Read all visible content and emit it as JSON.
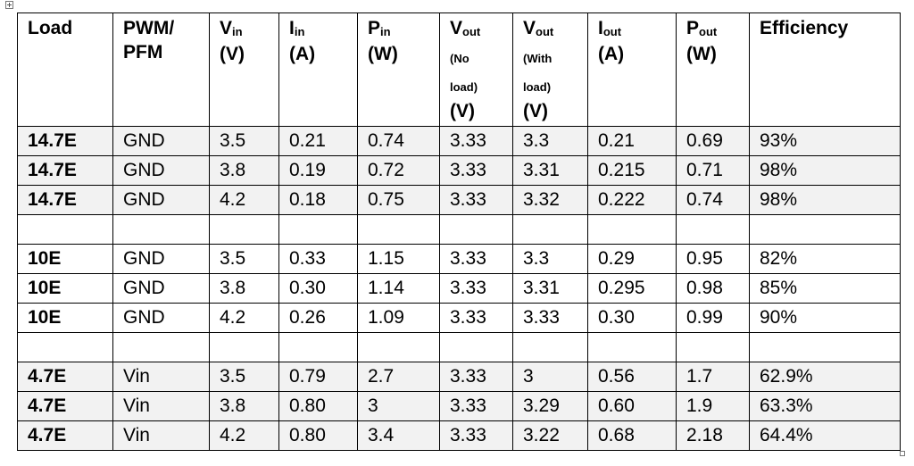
{
  "headers": [
    {
      "main": "Load",
      "sub": "",
      "unit": "",
      "note1": "",
      "note2": ""
    },
    {
      "main": "PWM/",
      "sub": "",
      "unit": "PFM",
      "note1": "",
      "note2": ""
    },
    {
      "main": "V",
      "sub": "in",
      "unit": "(V)",
      "note1": "",
      "note2": ""
    },
    {
      "main": "I",
      "sub": "in",
      "unit": "(A)",
      "note1": "",
      "note2": ""
    },
    {
      "main": "P",
      "sub": "in",
      "unit": "(W)",
      "note1": "",
      "note2": ""
    },
    {
      "main": "V",
      "sub": "out",
      "unit": "(V)",
      "note1": "(No",
      "note2": "load)"
    },
    {
      "main": "V",
      "sub": "out",
      "unit": "(V)",
      "note1": "(With",
      "note2": "load)"
    },
    {
      "main": "I",
      "sub": "out",
      "unit": "(A)",
      "note1": "",
      "note2": ""
    },
    {
      "main": "P",
      "sub": "out",
      "unit": "(W)",
      "note1": "",
      "note2": ""
    },
    {
      "main": "Efficiency",
      "sub": "",
      "unit": "",
      "note1": "",
      "note2": ""
    }
  ],
  "rows": [
    {
      "shaded": true,
      "cells": [
        "14.7E",
        "GND",
        "3.5",
        "0.21",
        "0.74",
        "3.33",
        "3.3",
        "0.21",
        "0.69",
        "93%"
      ]
    },
    {
      "shaded": true,
      "cells": [
        "14.7E",
        "GND",
        "3.8",
        "0.19",
        "0.72",
        "3.33",
        "3.31",
        "0.215",
        "0.71",
        "98%"
      ]
    },
    {
      "shaded": true,
      "cells": [
        "14.7E",
        "GND",
        "4.2",
        "0.18",
        "0.75",
        "3.33",
        "3.32",
        "0.222",
        "0.74",
        "98%"
      ]
    },
    {
      "shaded": false,
      "cells": [
        "",
        "",
        "",
        "",
        "",
        "",
        "",
        "",
        "",
        ""
      ]
    },
    {
      "shaded": false,
      "cells": [
        "10E",
        "GND",
        "3.5",
        "0.33",
        "1.15",
        "3.33",
        "3.3",
        "0.29",
        "0.95",
        "82%"
      ]
    },
    {
      "shaded": false,
      "cells": [
        "10E",
        "GND",
        "3.8",
        "0.30",
        "1.14",
        "3.33",
        "3.31",
        "0.295",
        "0.98",
        "85%"
      ]
    },
    {
      "shaded": false,
      "cells": [
        "10E",
        "GND",
        "4.2",
        "0.26",
        "1.09",
        "3.33",
        "3.33",
        "0.30",
        "0.99",
        "90%"
      ]
    },
    {
      "shaded": false,
      "cells": [
        "",
        "",
        "",
        "",
        "",
        "",
        "",
        "",
        "",
        ""
      ]
    },
    {
      "shaded": true,
      "cells": [
        "4.7E",
        "Vin",
        "3.5",
        "0.79",
        "2.7",
        "3.33",
        "3",
        "0.56",
        "1.7",
        "62.9%"
      ]
    },
    {
      "shaded": true,
      "cells": [
        "4.7E",
        "Vin",
        "3.8",
        "0.80",
        "3",
        "3.33",
        "3.29",
        "0.60",
        "1.9",
        "63.3%"
      ]
    },
    {
      "shaded": true,
      "cells": [
        "4.7E",
        "Vin",
        "4.2",
        "0.80",
        "3.4",
        "3.33",
        "3.22",
        "0.68",
        "2.18",
        "64.4%"
      ]
    }
  ],
  "colors": {
    "shaded_row": "#f2f2f2",
    "border": "#000000"
  },
  "icons": {
    "move_handle": "move-arrows-icon",
    "resize_handle": "resize-square-icon"
  }
}
